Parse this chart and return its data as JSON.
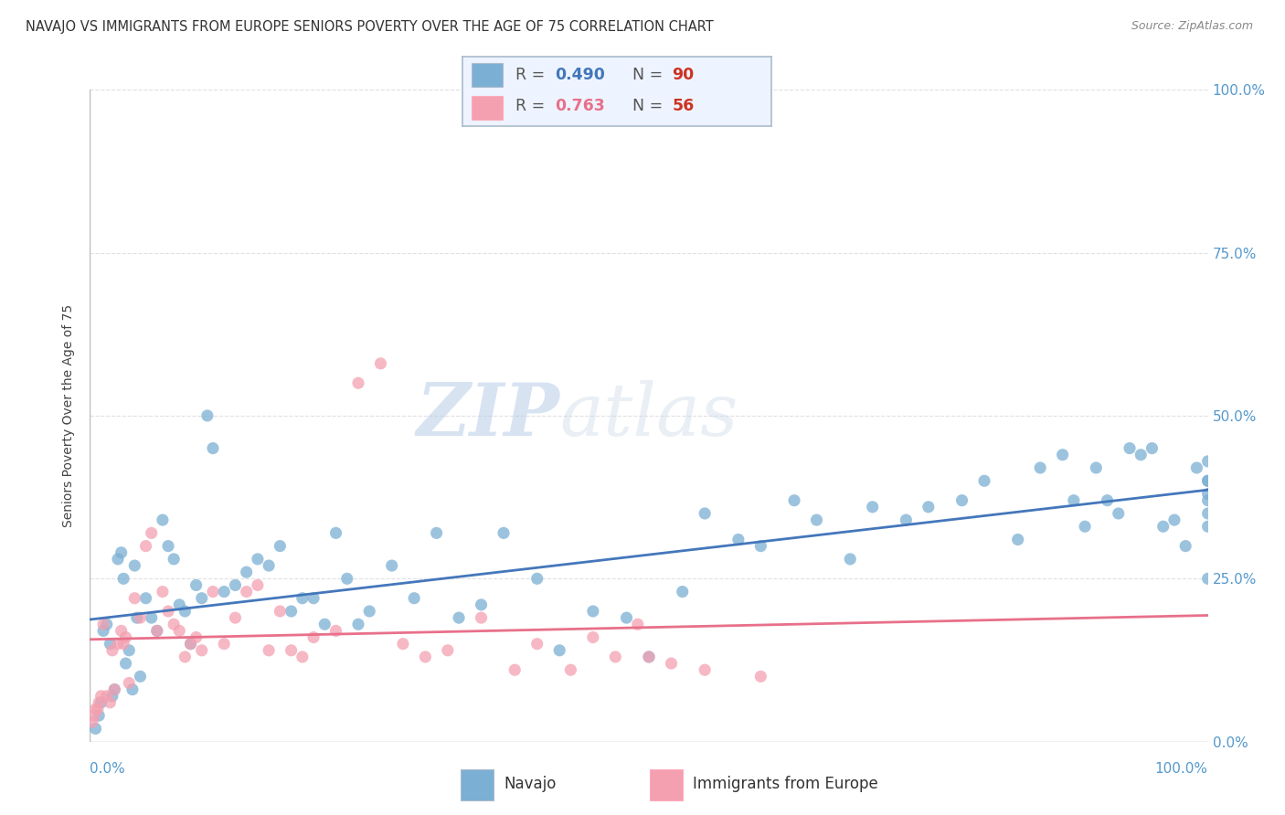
{
  "title": "NAVAJO VS IMMIGRANTS FROM EUROPE SENIORS POVERTY OVER THE AGE OF 75 CORRELATION CHART",
  "source": "Source: ZipAtlas.com",
  "ylabel": "Seniors Poverty Over the Age of 75",
  "navajo_R": 0.49,
  "navajo_N": 90,
  "europe_R": 0.763,
  "europe_N": 56,
  "navajo_color": "#7BAFD4",
  "europe_color": "#F4A0B0",
  "navajo_line_color": "#4477BB",
  "europe_line_color": "#E8708A",
  "legend_bg_color": "#EEF4FF",
  "legend_border_color": "#AABBCC",
  "watermark_text": "ZIPatlas",
  "navajo_x": [
    0.5,
    0.8,
    1.0,
    1.2,
    1.5,
    1.8,
    2.0,
    2.2,
    2.5,
    2.8,
    3.0,
    3.2,
    3.5,
    3.8,
    4.0,
    4.2,
    4.5,
    5.0,
    5.5,
    6.0,
    6.5,
    7.0,
    7.5,
    8.0,
    8.5,
    9.0,
    9.5,
    10.0,
    10.5,
    11.0,
    12.0,
    13.0,
    14.0,
    15.0,
    16.0,
    17.0,
    18.0,
    19.0,
    20.0,
    21.0,
    22.0,
    23.0,
    24.0,
    25.0,
    27.0,
    29.0,
    31.0,
    33.0,
    35.0,
    37.0,
    40.0,
    42.0,
    45.0,
    48.0,
    50.0,
    53.0,
    55.0,
    58.0,
    60.0,
    63.0,
    65.0,
    68.0,
    70.0,
    73.0,
    75.0,
    78.0,
    80.0,
    83.0,
    85.0,
    87.0,
    88.0,
    89.0,
    90.0,
    91.0,
    92.0,
    93.0,
    94.0,
    95.0,
    96.0,
    97.0,
    98.0,
    99.0,
    100.0,
    100.0,
    100.0,
    100.0,
    100.0,
    100.0,
    100.0,
    100.0
  ],
  "navajo_y": [
    2.0,
    4.0,
    6.0,
    17.0,
    18.0,
    15.0,
    7.0,
    8.0,
    28.0,
    29.0,
    25.0,
    12.0,
    14.0,
    8.0,
    27.0,
    19.0,
    10.0,
    22.0,
    19.0,
    17.0,
    34.0,
    30.0,
    28.0,
    21.0,
    20.0,
    15.0,
    24.0,
    22.0,
    50.0,
    45.0,
    23.0,
    24.0,
    26.0,
    28.0,
    27.0,
    30.0,
    20.0,
    22.0,
    22.0,
    18.0,
    32.0,
    25.0,
    18.0,
    20.0,
    27.0,
    22.0,
    32.0,
    19.0,
    21.0,
    32.0,
    25.0,
    14.0,
    20.0,
    19.0,
    13.0,
    23.0,
    35.0,
    31.0,
    30.0,
    37.0,
    34.0,
    28.0,
    36.0,
    34.0,
    36.0,
    37.0,
    40.0,
    31.0,
    42.0,
    44.0,
    37.0,
    33.0,
    42.0,
    37.0,
    35.0,
    45.0,
    44.0,
    45.0,
    33.0,
    34.0,
    30.0,
    42.0,
    33.0,
    43.0,
    37.0,
    38.0,
    40.0,
    40.0,
    35.0,
    25.0
  ],
  "europe_x": [
    0.2,
    0.4,
    0.5,
    0.7,
    0.8,
    1.0,
    1.2,
    1.5,
    1.8,
    2.0,
    2.2,
    2.5,
    2.8,
    3.0,
    3.2,
    3.5,
    4.0,
    4.5,
    5.0,
    5.5,
    6.0,
    6.5,
    7.0,
    7.5,
    8.0,
    8.5,
    9.0,
    9.5,
    10.0,
    11.0,
    12.0,
    13.0,
    14.0,
    15.0,
    16.0,
    17.0,
    18.0,
    19.0,
    20.0,
    22.0,
    24.0,
    26.0,
    28.0,
    30.0,
    32.0,
    35.0,
    38.0,
    40.0,
    43.0,
    45.0,
    47.0,
    49.0,
    50.0,
    52.0,
    55.0,
    60.0
  ],
  "europe_y": [
    3.0,
    4.0,
    5.0,
    5.0,
    6.0,
    7.0,
    18.0,
    7.0,
    6.0,
    14.0,
    8.0,
    15.0,
    17.0,
    15.0,
    16.0,
    9.0,
    22.0,
    19.0,
    30.0,
    32.0,
    17.0,
    23.0,
    20.0,
    18.0,
    17.0,
    13.0,
    15.0,
    16.0,
    14.0,
    23.0,
    15.0,
    19.0,
    23.0,
    24.0,
    14.0,
    20.0,
    14.0,
    13.0,
    16.0,
    17.0,
    55.0,
    58.0,
    15.0,
    13.0,
    14.0,
    19.0,
    11.0,
    15.0,
    11.0,
    16.0,
    13.0,
    18.0,
    13.0,
    12.0,
    11.0,
    10.0
  ],
  "ytick_labels": [
    "0.0%",
    "25.0%",
    "50.0%",
    "75.0%",
    "100.0%"
  ],
  "ytick_values": [
    0,
    25,
    50,
    75,
    100
  ],
  "xtick_labels": [
    "0.0%",
    "100.0%"
  ],
  "background_color": "#FFFFFF",
  "grid_color": "#DDDDDD",
  "title_fontsize": 11,
  "source_fontsize": 9,
  "axis_label_fontsize": 10
}
